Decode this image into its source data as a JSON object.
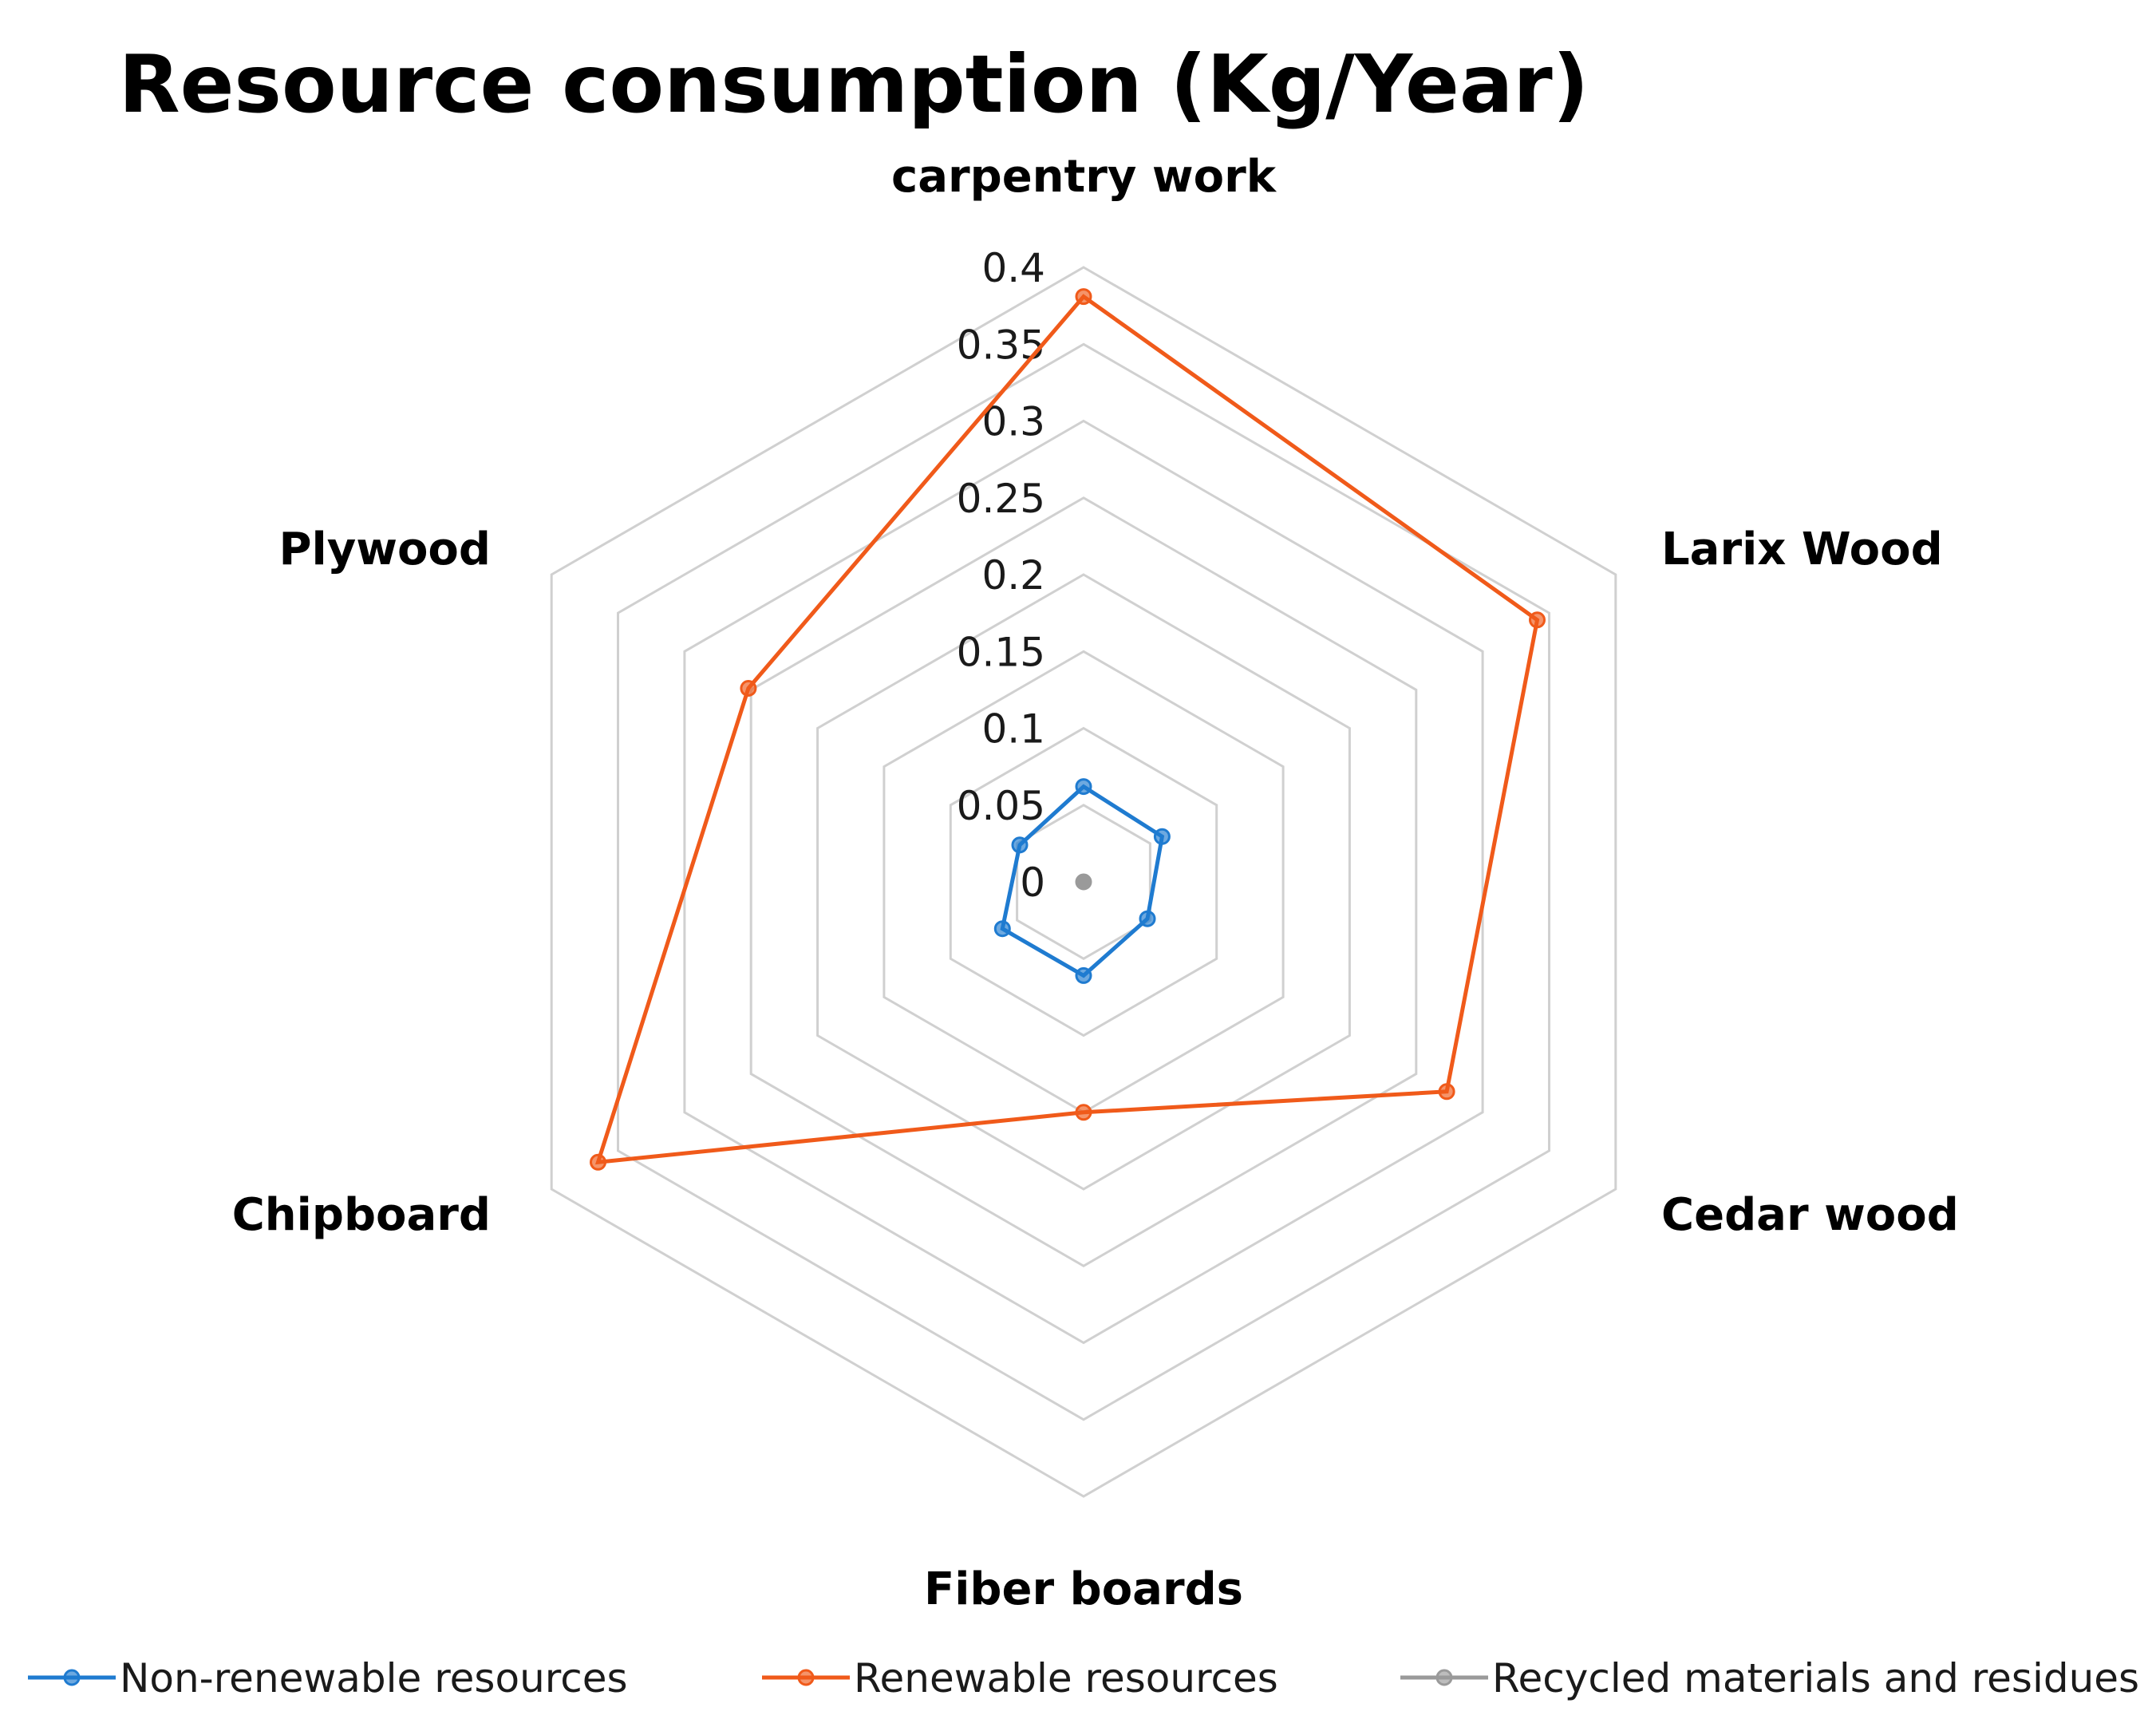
{
  "chart_data": {
    "type": "radar",
    "title": "Resource consumption (Kg/Year)",
    "categories": [
      "carpentry work",
      "Larix Wood",
      "Cedar wood",
      "Fiber boards",
      "Chipboard",
      "Plywood"
    ],
    "r_range": [
      0,
      0.4
    ],
    "ticks": [
      0,
      0.05,
      0.1,
      0.15,
      0.2,
      0.25,
      0.3,
      0.35,
      0.4
    ],
    "tick_labels": [
      "0",
      "0.05",
      "0.1",
      "0.15",
      "0.2",
      "0.25",
      "0.3",
      "0.35",
      "0.4"
    ],
    "grid": true,
    "legend_position": "bottom",
    "series": [
      {
        "name": "Non-renewable resources",
        "color": "#1f7bd0",
        "values": [
          0.062,
          0.059,
          0.048,
          0.061,
          0.061,
          0.048
        ]
      },
      {
        "name": "Renewable resources",
        "color": "#f05a1a",
        "values": [
          0.381,
          0.341,
          0.273,
          0.15,
          0.365,
          0.252
        ]
      },
      {
        "name": "Recycled materials and residues",
        "color": "#9a9a9a",
        "values": [
          0,
          0,
          0,
          0,
          0,
          0
        ]
      }
    ]
  }
}
